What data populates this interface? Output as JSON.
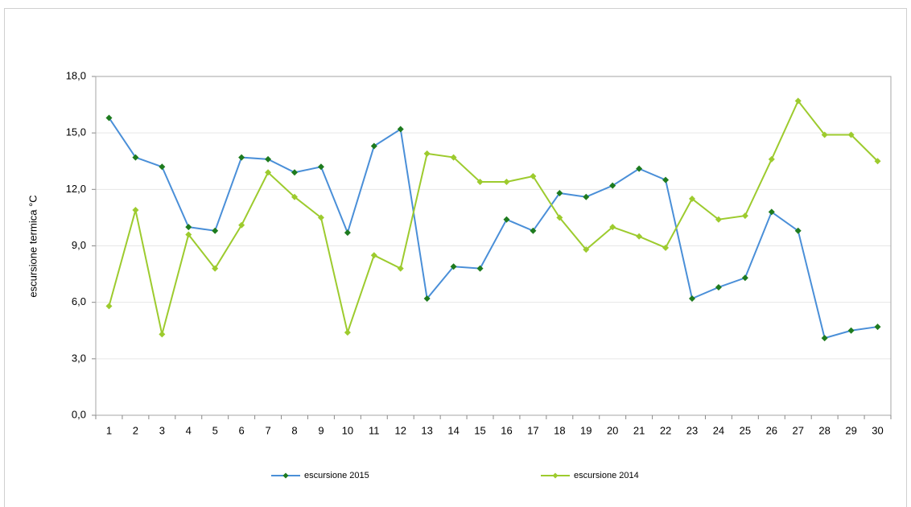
{
  "chart_data": {
    "type": "line",
    "y_label": "escursione termica °C",
    "categories": [
      "1",
      "2",
      "3",
      "4",
      "5",
      "6",
      "7",
      "8",
      "9",
      "10",
      "11",
      "12",
      "13",
      "14",
      "15",
      "16",
      "17",
      "18",
      "19",
      "20",
      "21",
      "22",
      "23",
      "24",
      "25",
      "26",
      "27",
      "28",
      "29",
      "30"
    ],
    "series": [
      {
        "name": "escursione 2015",
        "color": "#4a8fd8",
        "marker_color": "#1e7b1e",
        "values": [
          15.8,
          13.7,
          13.2,
          10.0,
          9.8,
          13.7,
          13.6,
          12.9,
          13.2,
          9.7,
          14.3,
          15.2,
          6.2,
          7.9,
          7.8,
          10.4,
          9.8,
          11.8,
          11.6,
          12.2,
          13.1,
          12.5,
          6.2,
          6.8,
          7.3,
          10.8,
          9.8,
          4.1,
          4.5,
          4.7
        ]
      },
      {
        "name": "escursione 2014",
        "color": "#9dcb2e",
        "marker_color": "#9dcb2e",
        "values": [
          5.8,
          10.9,
          4.3,
          9.6,
          7.8,
          10.1,
          12.9,
          11.6,
          10.5,
          4.4,
          8.5,
          7.8,
          13.9,
          13.7,
          12.4,
          12.4,
          12.7,
          10.5,
          8.8,
          10.0,
          9.5,
          8.9,
          11.5,
          10.4,
          10.6,
          13.6,
          16.7,
          14.9,
          14.9,
          13.5
        ]
      }
    ],
    "ylim": [
      0,
      18
    ],
    "yticks": [
      {
        "value": 0,
        "label": "0,0"
      },
      {
        "value": 3,
        "label": "3,0"
      },
      {
        "value": 6,
        "label": "6,0"
      },
      {
        "value": 9,
        "label": "9,0"
      },
      {
        "value": 12,
        "label": "12,0"
      },
      {
        "value": 15,
        "label": "15,0"
      },
      {
        "value": 18,
        "label": "18,0"
      }
    ],
    "grid": true
  }
}
